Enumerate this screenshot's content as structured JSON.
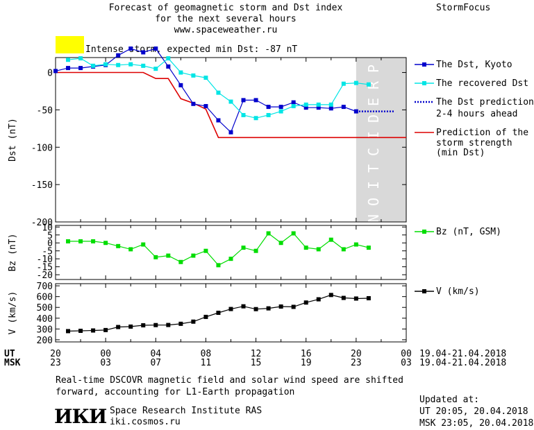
{
  "header": {
    "title_lines": [
      "Forecast of geomagnetic storm and Dst index",
      "for the next several hours",
      "www.spaceweather.ru"
    ],
    "brand": "StormFocus",
    "alert_color": "#ffff00",
    "alert_text": "Intense storm, expected min Dst: -87 nT"
  },
  "legend": {
    "dst_kyoto": "The Dst, Kyoto",
    "dst_recovered": "The recovered Dst",
    "dst_prediction_1": "The Dst prediction",
    "dst_prediction_2": "2-4 hours ahead",
    "storm_1": "Prediction of the",
    "storm_2": "storm strength",
    "storm_3": "(min Dst)",
    "bz": "Bz (nT, GSM)",
    "v": "V (km/s)"
  },
  "time_axis": {
    "ut_label": "UT",
    "msk_label": "MSK",
    "ut_ticks": [
      "20",
      "00",
      "04",
      "08",
      "12",
      "16",
      "20",
      "00"
    ],
    "msk_ticks": [
      "23",
      "03",
      "07",
      "11",
      "15",
      "19",
      "23",
      "03"
    ],
    "ut_range": "19.04-21.04.2018",
    "msk_range": "19.04-21.04.2018"
  },
  "footer": {
    "note_1": "Real-time DSCOVR magnetic field and solar wind speed are shifted",
    "note_2": "forward, accounting for L1-Earth propagation",
    "logo_text": "ИКИ",
    "institute": "Space Research Institute RAS",
    "site": "iki.cosmos.ru",
    "updated_label": "Updated at:",
    "updated_ut": "UT  20:05, 20.04.2018",
    "updated_msk": "MSK 23:05, 20.04.2018"
  },
  "chart_data": [
    {
      "type": "line",
      "ylabel": "Dst (nT)",
      "ylim": [
        -200,
        20
      ],
      "yticks": [
        0,
        -50,
        -100,
        -150,
        -200
      ],
      "xlim": [
        20,
        48
      ],
      "x_unit": "hours UT from 00:00 19.04.2018",
      "prediction_band": {
        "x_start": 44,
        "x_end": 48,
        "label": "PREDICTION",
        "color": "#d9d9d9"
      },
      "series": [
        {
          "name": "The Dst, Kyoto",
          "color": "#0000cc",
          "marker": "square",
          "x": [
            20,
            21,
            22,
            23,
            24,
            25,
            26,
            27,
            28,
            29,
            30,
            31,
            32,
            33,
            34,
            35,
            36,
            37,
            38,
            39,
            40,
            41,
            42,
            43,
            44
          ],
          "y": [
            2,
            6,
            6,
            8,
            10,
            23,
            32,
            27,
            32,
            8,
            -17,
            -42,
            -45,
            -64,
            -80,
            -37,
            -37,
            -46,
            -46,
            -40,
            -47,
            -47,
            -48,
            -46,
            -52
          ]
        },
        {
          "name": "The recovered Dst",
          "color": "#00e5e5",
          "marker": "square",
          "x": [
            21,
            22,
            23,
            24,
            25,
            26,
            27,
            28,
            29,
            30,
            31,
            32,
            33,
            34,
            35,
            36,
            37,
            38,
            39,
            40,
            41,
            42,
            43,
            44,
            45
          ],
          "y": [
            17,
            19,
            9,
            11,
            10,
            11,
            9,
            5,
            19,
            0,
            -4,
            -7,
            -27,
            -39,
            -57,
            -61,
            -57,
            -52,
            -45,
            -43,
            -43,
            -43,
            -15,
            -14,
            -16
          ]
        },
        {
          "name": "The Dst prediction",
          "color": "#0000cc",
          "style": "dotted",
          "x": [
            44,
            47
          ],
          "y": [
            -52,
            -52
          ]
        },
        {
          "name": "Prediction of the storm strength (min Dst)",
          "color": "#dd0000",
          "step": true,
          "x": [
            20,
            27,
            28,
            29,
            30,
            31,
            32,
            33,
            34,
            48
          ],
          "y": [
            0,
            0,
            -8,
            -8,
            -35,
            -41,
            -49,
            -87,
            -87,
            -87
          ]
        }
      ]
    },
    {
      "type": "line",
      "ylabel": "Bz (nT)",
      "ylim": [
        -23,
        11
      ],
      "yticks": [
        10,
        5,
        0,
        -5,
        -10,
        -15,
        -20
      ],
      "xlim": [
        20,
        48
      ],
      "series": [
        {
          "name": "Bz (nT, GSM)",
          "color": "#00dd00",
          "marker": "square",
          "x": [
            21,
            22,
            23,
            24,
            25,
            26,
            27,
            28,
            29,
            30,
            31,
            32,
            33,
            34,
            35,
            36,
            37,
            38,
            39,
            40,
            41,
            42,
            43,
            44,
            45
          ],
          "y": [
            1,
            1,
            1,
            0,
            -2,
            -4,
            -1,
            -9,
            -8,
            -12,
            -8,
            -5,
            -14,
            -10,
            -3,
            -5,
            6,
            0,
            6,
            -3,
            -4,
            2,
            -4,
            -1,
            -3
          ]
        }
      ]
    },
    {
      "type": "line",
      "ylabel": "V (km/s)",
      "ylim": [
        180,
        720
      ],
      "yticks": [
        700,
        600,
        500,
        400,
        300,
        200
      ],
      "xlim": [
        20,
        48
      ],
      "series": [
        {
          "name": "V (km/s)",
          "color": "#000000",
          "marker": "square",
          "x": [
            21,
            22,
            23,
            24,
            25,
            26,
            27,
            28,
            29,
            30,
            31,
            32,
            33,
            34,
            35,
            36,
            37,
            38,
            39,
            40,
            41,
            42,
            43,
            44,
            45
          ],
          "y": [
            280,
            283,
            286,
            290,
            318,
            322,
            334,
            336,
            337,
            348,
            368,
            412,
            450,
            485,
            510,
            484,
            491,
            508,
            505,
            545,
            575,
            615,
            588,
            582,
            585
          ]
        }
      ]
    }
  ]
}
